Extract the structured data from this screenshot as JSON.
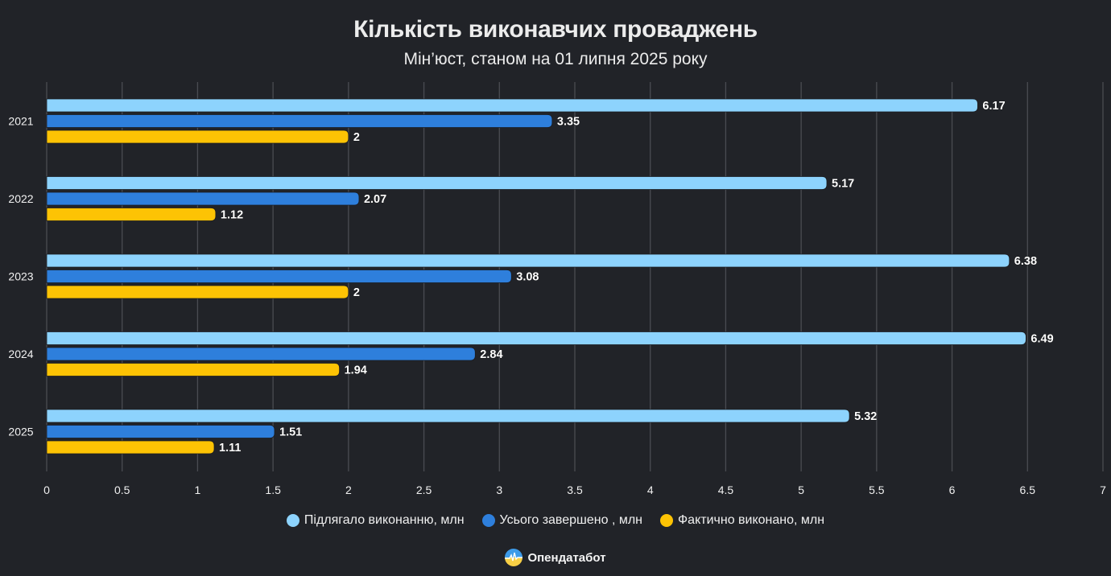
{
  "chart_data": {
    "type": "bar",
    "orientation": "horizontal",
    "title": "Кількість виконавчих проваджень",
    "subtitle": "Мін’юст, станом на 01 липня 2025 року",
    "xlabel": "",
    "ylabel": "",
    "xlim": [
      0,
      7
    ],
    "x_ticks": [
      "0",
      "0.5",
      "1",
      "1.5",
      "2",
      "2.5",
      "3",
      "3.5",
      "4",
      "4.5",
      "5",
      "5.5",
      "6",
      "6.5",
      "7"
    ],
    "x_tick_values": [
      0,
      0.5,
      1,
      1.5,
      2,
      2.5,
      3,
      3.5,
      4,
      4.5,
      5,
      5.5,
      6,
      6.5,
      7
    ],
    "grid": true,
    "legend_position": "bottom",
    "categories": [
      "2021",
      "2022",
      "2023",
      "2024",
      "2025"
    ],
    "series": [
      {
        "name": "Підлягало виконанню, млн",
        "color": "#8dd3fd",
        "values": [
          6.17,
          5.17,
          6.38,
          6.49,
          5.32
        ],
        "labels": [
          "6.17",
          "5.17",
          "6.38",
          "6.49",
          "5.32"
        ]
      },
      {
        "name": "Усього завершено , млн",
        "color": "#2e7fdc",
        "values": [
          3.35,
          2.07,
          3.08,
          2.84,
          1.51
        ],
        "labels": [
          "3.35",
          "2.07",
          "3.08",
          "2.84",
          "1.51"
        ]
      },
      {
        "name": "Фактично виконано, млн",
        "color": "#fdc304",
        "values": [
          2,
          1.12,
          2,
          1.94,
          1.11
        ],
        "labels": [
          "2",
          "1.12",
          "2",
          "1.94",
          "1.11"
        ]
      }
    ]
  },
  "brand": {
    "name": "Опендатабот",
    "logo_icon": "opendatabot-logo-icon"
  },
  "colors": {
    "background": "#212328",
    "grid": "#4a4c52",
    "text": "#f2f2f2"
  }
}
